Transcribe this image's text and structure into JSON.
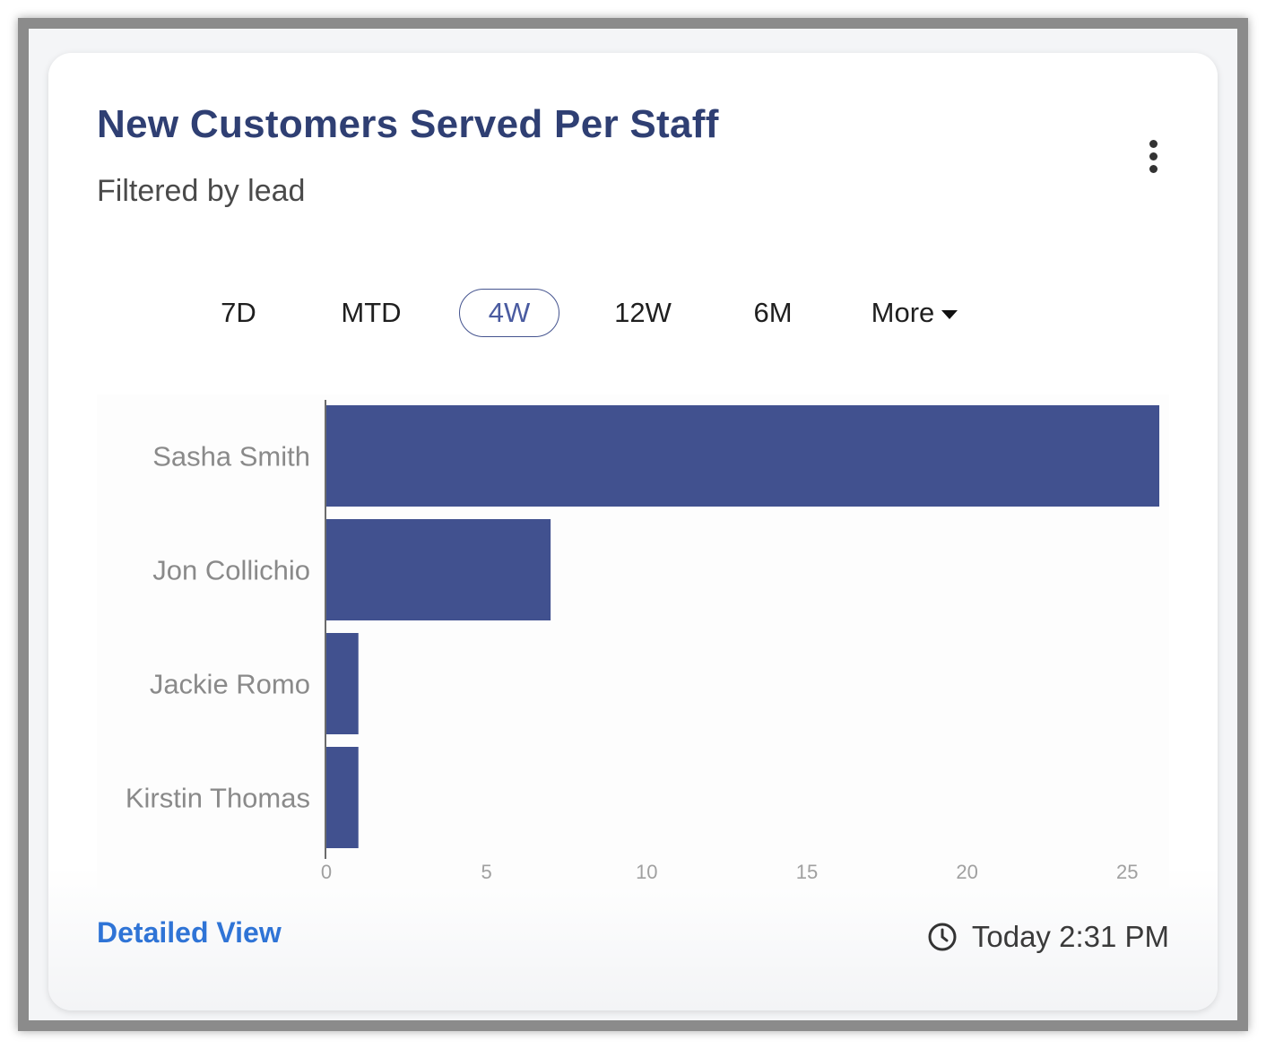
{
  "widget": {
    "title": "New Customers Served Per Staff",
    "subtitle": "Filtered by lead",
    "menu_icon": "vertical-dots-icon"
  },
  "periods": [
    {
      "label": "7D",
      "active": false
    },
    {
      "label": "MTD",
      "active": false
    },
    {
      "label": "4W",
      "active": true
    },
    {
      "label": "12W",
      "active": false
    },
    {
      "label": "6M",
      "active": false
    },
    {
      "label": "More",
      "active": false,
      "dropdown": true
    }
  ],
  "chart_data": {
    "type": "bar",
    "orientation": "horizontal",
    "categories": [
      "Sasha Smith",
      "Jon Collichio",
      "Jackie Romo",
      "Kirstin Thomas"
    ],
    "values": [
      26,
      7,
      1,
      1
    ],
    "xlim": [
      0,
      26
    ],
    "xticks": [
      0,
      5,
      10,
      15,
      20,
      25
    ],
    "bar_color": "#41518f",
    "grid": false
  },
  "footer": {
    "link_label": "Detailed View",
    "timestamp": "Today 2:31 PM",
    "timestamp_icon": "clock-icon"
  },
  "colors": {
    "title": "#2f3f73",
    "link": "#2f74d6",
    "accent": "#41518f"
  }
}
